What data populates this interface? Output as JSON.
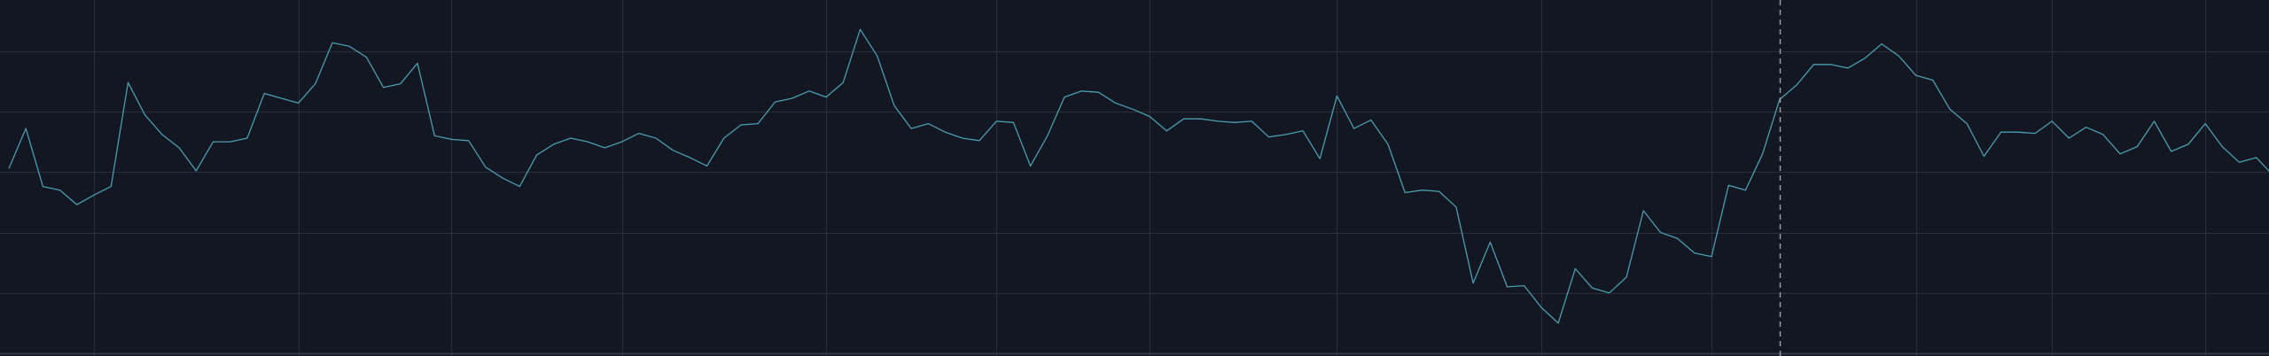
{
  "chart_data": {
    "type": "line",
    "title": "",
    "xlabel": "",
    "ylabel": "",
    "grid": true,
    "colors": {
      "background": "#131722",
      "grid": "#2a2e39",
      "axis_line": "#363a45",
      "line": "#4a9cb0",
      "crosshair": "#9598a1"
    },
    "ylim": [
      0,
      300
    ],
    "y_grid_values": [
      50,
      100,
      150,
      200,
      250,
      300
    ],
    "x_grid_indices": [
      5,
      17,
      26,
      36,
      48,
      58,
      67,
      78,
      90,
      100,
      112,
      120,
      129,
      138
    ],
    "crosshair_index": 104,
    "series": [
      {
        "values": [
          153,
          186,
          138,
          135,
          123,
          131,
          138,
          224,
          197,
          181,
          170,
          151,
          175,
          175,
          178,
          215,
          211,
          207,
          223,
          257,
          254,
          245,
          220,
          223,
          240,
          180,
          177,
          176,
          154,
          145,
          138,
          164,
          173,
          178,
          175,
          170,
          175,
          182,
          178,
          168,
          162,
          155,
          178,
          189,
          190,
          208,
          211,
          217,
          212,
          224,
          268,
          246,
          205,
          186,
          190,
          183,
          178,
          176,
          192,
          191,
          155,
          180,
          212,
          217,
          216,
          207,
          202,
          196,
          184,
          194,
          194,
          192,
          191,
          192,
          179,
          181,
          184,
          161,
          213,
          186,
          193,
          173,
          133,
          135,
          134,
          121,
          58,
          92,
          55,
          56,
          38,
          25,
          70,
          54,
          50,
          63,
          118,
          100,
          95,
          83,
          80,
          139,
          135,
          165,
          210,
          222,
          239,
          239,
          236,
          244,
          256,
          246,
          230,
          226,
          202,
          190,
          163,
          183,
          183,
          182,
          192,
          178,
          187,
          181,
          165,
          171,
          192,
          167,
          173,
          190,
          171,
          158,
          162,
          147
        ]
      }
    ]
  }
}
